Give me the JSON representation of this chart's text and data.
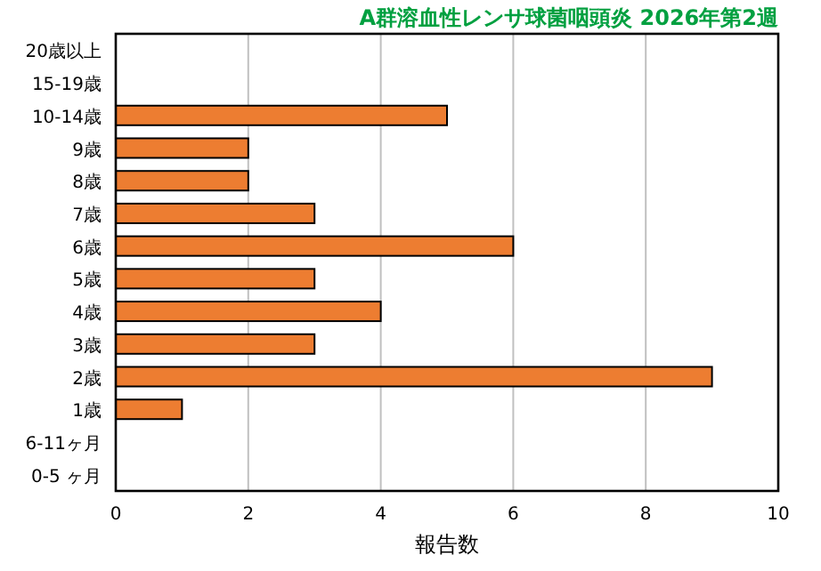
{
  "chart_data": {
    "type": "bar",
    "orientation": "horizontal",
    "title": "A群溶血性レンサ球菌咽頭炎 2026年第2週",
    "xlabel": "報告数",
    "categories": [
      "20歳以上",
      "15-19歳",
      "10-14歳",
      "9歳",
      "8歳",
      "7歳",
      "6歳",
      "5歳",
      "4歳",
      "3歳",
      "2歳",
      "1歳",
      "6-11ヶ月",
      "0-5 ヶ月"
    ],
    "series": [
      {
        "color": "#ed7d31",
        "values": [
          0,
          0,
          5,
          2,
          2,
          3,
          6,
          3,
          4,
          3,
          9,
          1,
          0,
          0
        ]
      }
    ],
    "xlim": [
      0,
      10
    ],
    "xticks": [
      0,
      2,
      4,
      6,
      8,
      10
    ],
    "grid": "x"
  }
}
